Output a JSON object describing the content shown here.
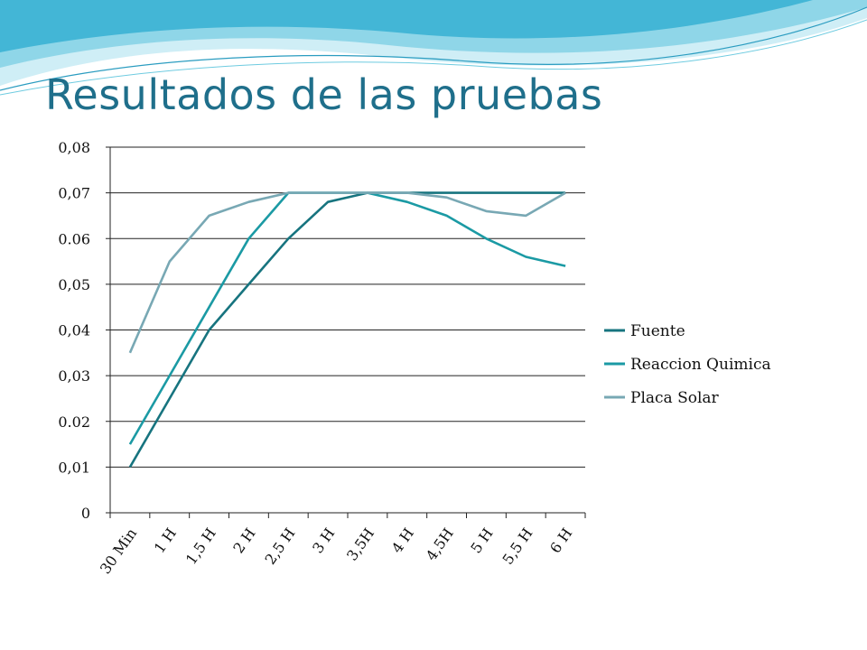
{
  "slide": {
    "title": "Resultados de las pruebas"
  },
  "colors": {
    "title": "#1f6f8b",
    "wave_light": "#bfe7f2",
    "wave_mid": "#5fc3dd",
    "wave_dark": "#2a9cc0"
  },
  "chart_data": {
    "type": "line",
    "categories": [
      "30 Min",
      "1 H",
      "1,5 H",
      "2 H",
      "2,5 H",
      "3 H",
      "3,5H",
      "4 H",
      "4,5H",
      "5 H",
      "5,5 H",
      "6 H"
    ],
    "ylim": [
      0,
      0.08
    ],
    "y_ticks": [
      {
        "value": 0,
        "label": "0"
      },
      {
        "value": 0.01,
        "label": "0,01"
      },
      {
        "value": 0.02,
        "label": "0.02"
      },
      {
        "value": 0.03,
        "label": "0,03"
      },
      {
        "value": 0.04,
        "label": "0,04"
      },
      {
        "value": 0.05,
        "label": "0,05"
      },
      {
        "value": 0.06,
        "label": "0.06"
      },
      {
        "value": 0.07,
        "label": "0,07"
      },
      {
        "value": 0.08,
        "label": "0,08"
      }
    ],
    "grid": true,
    "legend_position": "right",
    "series": [
      {
        "name": "Fuente",
        "color": "#17747f",
        "values": [
          0.01,
          0.025,
          0.04,
          0.05,
          0.06,
          0.068,
          0.07,
          0.07,
          0.07,
          0.07,
          0.07,
          0.07
        ]
      },
      {
        "name": "Reaccion Quimica",
        "color": "#1b9aa4",
        "values": [
          0.015,
          0.03,
          0.045,
          0.06,
          0.07,
          0.07,
          0.07,
          0.068,
          0.065,
          0.06,
          0.056,
          0.054
        ]
      },
      {
        "name": "Placa Solar",
        "color": "#78a8b4",
        "values": [
          0.035,
          0.055,
          0.065,
          0.068,
          0.07,
          0.07,
          0.07,
          0.07,
          0.069,
          0.066,
          0.065,
          0.07
        ]
      }
    ]
  }
}
